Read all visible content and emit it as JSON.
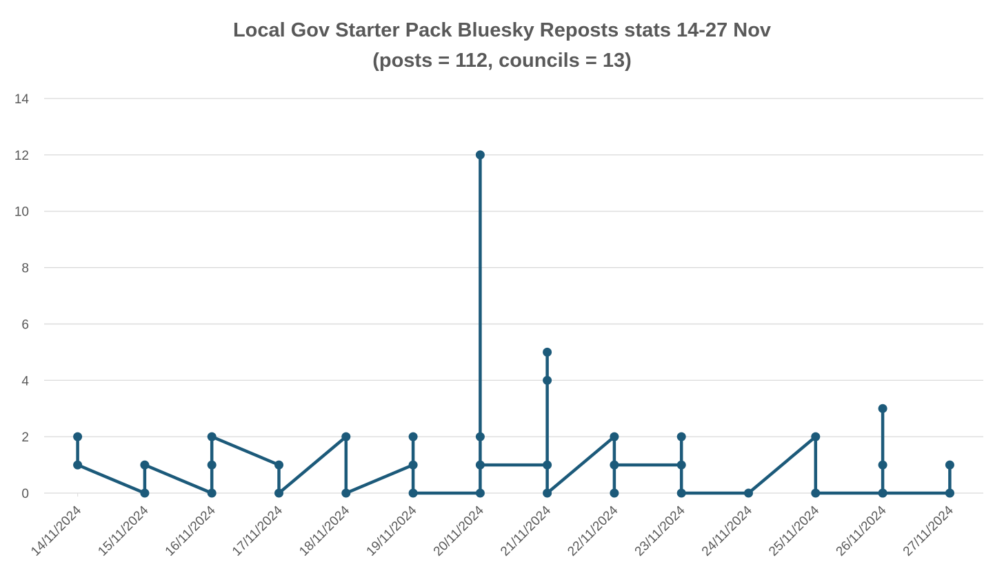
{
  "chart_data": {
    "type": "line",
    "title": "Local Gov Starter Pack Bluesky Reposts stats 14-27 Nov",
    "subtitle": "(posts = 112, councils = 13)",
    "xlabel": "",
    "ylabel": "",
    "ylim": [
      0,
      14
    ],
    "yticks": [
      "0",
      "2",
      "4",
      "6",
      "8",
      "10",
      "12",
      "14"
    ],
    "grid": true,
    "legend": "none",
    "color": "#1c5a7a",
    "categories": [
      "14/11/2024",
      "15/11/2024",
      "16/11/2024",
      "17/11/2024",
      "18/11/2024",
      "19/11/2024",
      "20/11/2024",
      "21/11/2024",
      "22/11/2024",
      "23/11/2024",
      "24/11/2024",
      "25/11/2024",
      "26/11/2024",
      "27/11/2024"
    ],
    "series": [
      {
        "points": [
          {
            "x": "14/11/2024",
            "y": 2
          },
          {
            "x": "14/11/2024",
            "y": 1
          },
          {
            "x": "15/11/2024",
            "y": 0
          },
          {
            "x": "15/11/2024",
            "y": 1
          },
          {
            "x": "16/11/2024",
            "y": 0
          },
          {
            "x": "16/11/2024",
            "y": 1
          },
          {
            "x": "16/11/2024",
            "y": 2
          },
          {
            "x": "17/11/2024",
            "y": 1
          },
          {
            "x": "17/11/2024",
            "y": 0
          },
          {
            "x": "18/11/2024",
            "y": 2
          },
          {
            "x": "18/11/2024",
            "y": 0
          },
          {
            "x": "19/11/2024",
            "y": 1
          },
          {
            "x": "19/11/2024",
            "y": 2
          },
          {
            "x": "19/11/2024",
            "y": 0
          },
          {
            "x": "20/11/2024",
            "y": 0
          },
          {
            "x": "20/11/2024",
            "y": 12
          },
          {
            "x": "20/11/2024",
            "y": 2
          },
          {
            "x": "20/11/2024",
            "y": 1
          },
          {
            "x": "21/11/2024",
            "y": 1
          },
          {
            "x": "21/11/2024",
            "y": 5
          },
          {
            "x": "21/11/2024",
            "y": 4
          },
          {
            "x": "21/11/2024",
            "y": 0
          },
          {
            "x": "22/11/2024",
            "y": 2
          },
          {
            "x": "22/11/2024",
            "y": 0
          },
          {
            "x": "22/11/2024",
            "y": 1
          },
          {
            "x": "23/11/2024",
            "y": 1
          },
          {
            "x": "23/11/2024",
            "y": 2
          },
          {
            "x": "23/11/2024",
            "y": 0
          },
          {
            "x": "24/11/2024",
            "y": 0
          },
          {
            "x": "25/11/2024",
            "y": 2
          },
          {
            "x": "25/11/2024",
            "y": 0
          },
          {
            "x": "26/11/2024",
            "y": 0
          },
          {
            "x": "26/11/2024",
            "y": 3
          },
          {
            "x": "26/11/2024",
            "y": 1
          },
          {
            "x": "26/11/2024",
            "y": 0
          },
          {
            "x": "27/11/2024",
            "y": 0
          },
          {
            "x": "27/11/2024",
            "y": 1
          },
          {
            "x": "27/11/2024",
            "y": 0
          }
        ]
      }
    ]
  }
}
